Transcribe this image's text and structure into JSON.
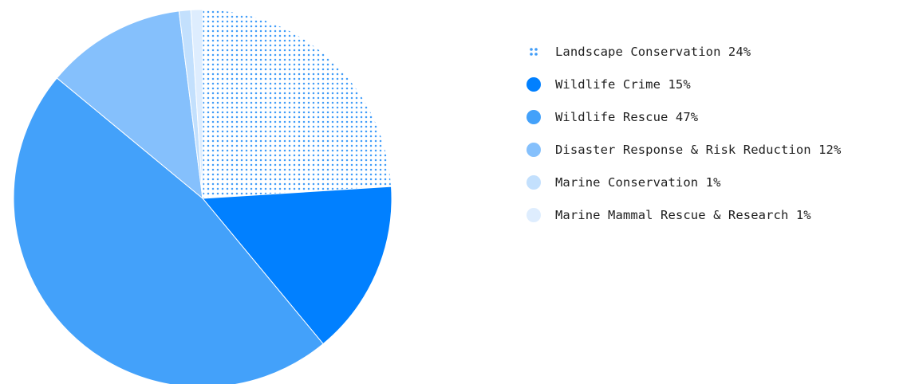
{
  "chart_data": {
    "type": "pie",
    "title": "",
    "legend_position": "right",
    "slices": [
      {
        "label": "Landscape Conservation 24%",
        "value": 24,
        "color": "#3f9cf8",
        "pattern": "dots"
      },
      {
        "label": "Wildlife Crime 15%",
        "value": 15,
        "color": "#0180ff",
        "pattern": "solid"
      },
      {
        "label": "Wildlife Rescue 47%",
        "value": 47,
        "color": "#43a1fa",
        "pattern": "solid"
      },
      {
        "label": "Disaster Response & Risk Reduction 12%",
        "value": 12,
        "color": "#85c0fc",
        "pattern": "solid"
      },
      {
        "label": "Marine Conservation 1%",
        "value": 1,
        "color": "#c3e0fd",
        "pattern": "solid"
      },
      {
        "label": "Marine Mammal Rescue & Research 1%",
        "value": 1,
        "color": "#deedfe",
        "pattern": "solid"
      }
    ]
  }
}
